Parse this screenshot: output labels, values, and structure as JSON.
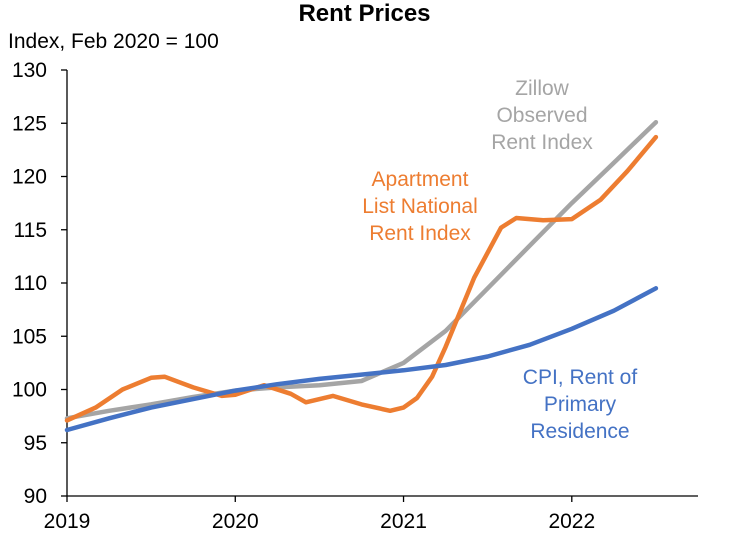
{
  "chart_data": {
    "type": "line",
    "title": "Rent Prices",
    "ylabel": "Index, Feb 2020 = 100",
    "xlabel": "",
    "xlim": [
      2019,
      2022.75
    ],
    "ylim": [
      90,
      130
    ],
    "yticks": [
      90,
      95,
      100,
      105,
      110,
      115,
      120,
      125,
      130
    ],
    "xticks": [
      2019,
      2020,
      2021,
      2022
    ],
    "ytick_labels": [
      "90",
      "95",
      "100",
      "105",
      "110",
      "115",
      "120",
      "125",
      "130"
    ],
    "xtick_labels": [
      "2019",
      "2020",
      "2021",
      "2022"
    ],
    "grid": false,
    "legend": "inline labels",
    "series": [
      {
        "name": "Zillow Observed Rent Index",
        "label_lines": [
          "Zillow",
          "Observed",
          "Rent Index"
        ],
        "color": "#a5a5a5",
        "points": [
          [
            2019.0,
            97.3
          ],
          [
            2019.25,
            98.0
          ],
          [
            2019.5,
            98.6
          ],
          [
            2019.75,
            99.3
          ],
          [
            2020.0,
            99.9
          ],
          [
            2020.25,
            100.2
          ],
          [
            2020.5,
            100.4
          ],
          [
            2020.75,
            100.8
          ],
          [
            2021.0,
            102.5
          ],
          [
            2021.25,
            105.5
          ],
          [
            2021.5,
            109.5
          ],
          [
            2021.75,
            113.5
          ],
          [
            2022.0,
            117.5
          ],
          [
            2022.25,
            121.3
          ],
          [
            2022.5,
            125.1
          ]
        ]
      },
      {
        "name": "Apartment List National Rent Index",
        "label_lines": [
          "Apartment",
          "List National",
          "Rent Index"
        ],
        "color": "#ed7d31",
        "points": [
          [
            2019.0,
            97.1
          ],
          [
            2019.17,
            98.3
          ],
          [
            2019.33,
            100.0
          ],
          [
            2019.5,
            101.1
          ],
          [
            2019.58,
            101.2
          ],
          [
            2019.75,
            100.2
          ],
          [
            2019.92,
            99.4
          ],
          [
            2020.0,
            99.5
          ],
          [
            2020.17,
            100.4
          ],
          [
            2020.33,
            99.6
          ],
          [
            2020.42,
            98.8
          ],
          [
            2020.58,
            99.4
          ],
          [
            2020.75,
            98.6
          ],
          [
            2020.92,
            98.0
          ],
          [
            2021.0,
            98.3
          ],
          [
            2021.08,
            99.2
          ],
          [
            2021.17,
            101.2
          ],
          [
            2021.25,
            104.0
          ],
          [
            2021.42,
            110.5
          ],
          [
            2021.58,
            115.2
          ],
          [
            2021.67,
            116.1
          ],
          [
            2021.83,
            115.9
          ],
          [
            2022.0,
            116.0
          ],
          [
            2022.17,
            117.8
          ],
          [
            2022.33,
            120.5
          ],
          [
            2022.5,
            123.7
          ]
        ]
      },
      {
        "name": "CPI, Rent of Primary Residence",
        "label_lines": [
          "CPI, Rent of",
          "Primary",
          "Residence"
        ],
        "color": "#4472c4",
        "points": [
          [
            2019.0,
            96.2
          ],
          [
            2019.25,
            97.3
          ],
          [
            2019.5,
            98.3
          ],
          [
            2019.75,
            99.1
          ],
          [
            2020.0,
            99.9
          ],
          [
            2020.25,
            100.5
          ],
          [
            2020.5,
            101.0
          ],
          [
            2020.75,
            101.4
          ],
          [
            2021.0,
            101.8
          ],
          [
            2021.25,
            102.3
          ],
          [
            2021.5,
            103.1
          ],
          [
            2021.75,
            104.2
          ],
          [
            2022.0,
            105.7
          ],
          [
            2022.25,
            107.4
          ],
          [
            2022.5,
            109.5
          ]
        ]
      }
    ]
  }
}
